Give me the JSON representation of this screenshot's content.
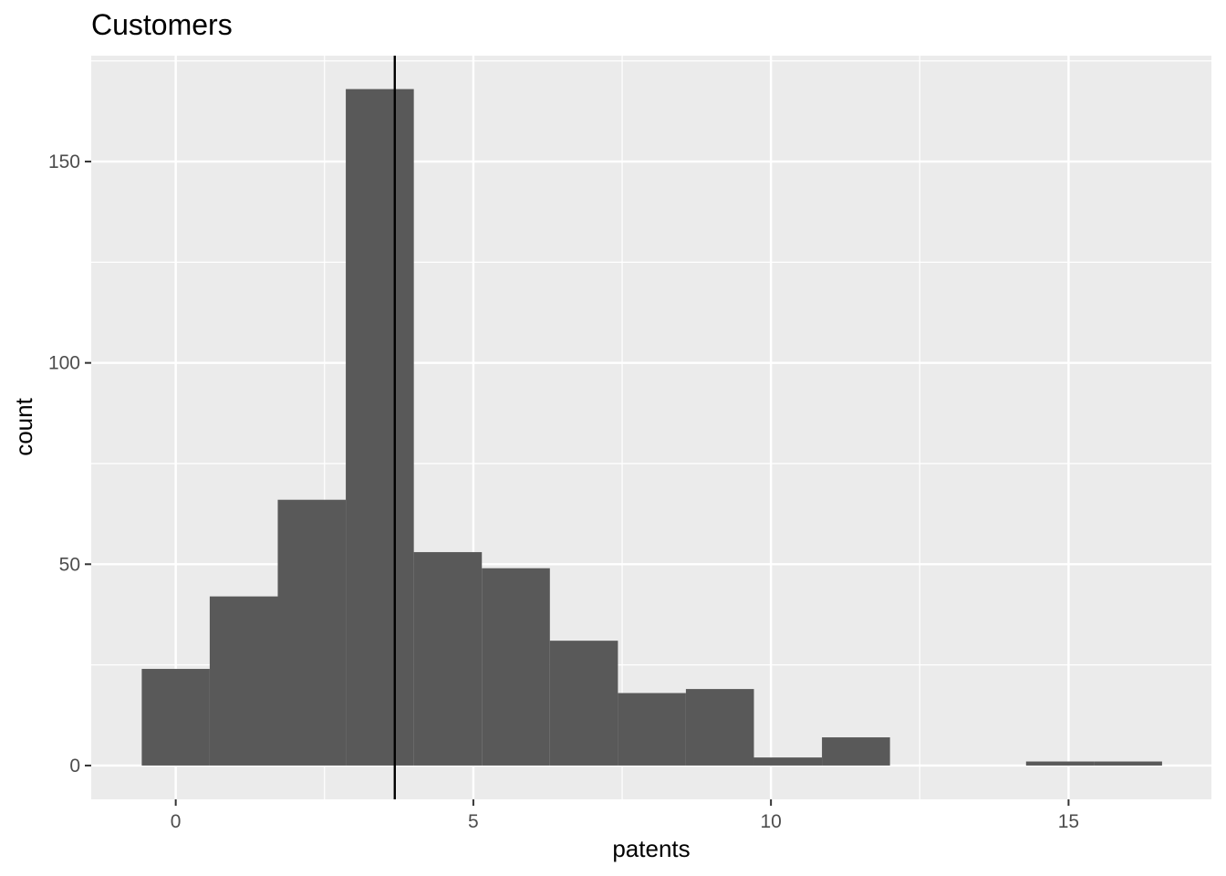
{
  "chart_data": {
    "type": "bar",
    "title": "Customers",
    "xlabel": "patents",
    "ylabel": "count",
    "xlim": [
      -1.42,
      17.4
    ],
    "ylim": [
      -8.4,
      176.3
    ],
    "x_ticks": [
      0,
      5,
      10,
      15
    ],
    "y_ticks": [
      0,
      50,
      100,
      150
    ],
    "grid": true,
    "bin_width": 1.1429,
    "bins": [
      {
        "x0": -0.571,
        "x1": 0.571,
        "count": 24
      },
      {
        "x0": 0.571,
        "x1": 1.714,
        "count": 42
      },
      {
        "x0": 1.714,
        "x1": 2.857,
        "count": 66
      },
      {
        "x0": 2.857,
        "x1": 4.0,
        "count": 168
      },
      {
        "x0": 4.0,
        "x1": 5.143,
        "count": 53
      },
      {
        "x0": 5.143,
        "x1": 6.286,
        "count": 49
      },
      {
        "x0": 6.286,
        "x1": 7.429,
        "count": 31
      },
      {
        "x0": 7.429,
        "x1": 8.571,
        "count": 18
      },
      {
        "x0": 8.571,
        "x1": 9.714,
        "count": 19
      },
      {
        "x0": 9.714,
        "x1": 10.857,
        "count": 2
      },
      {
        "x0": 10.857,
        "x1": 12.0,
        "count": 7
      },
      {
        "x0": 12.0,
        "x1": 13.143,
        "count": 0
      },
      {
        "x0": 13.143,
        "x1": 14.286,
        "count": 0
      },
      {
        "x0": 14.286,
        "x1": 15.429,
        "count": 1
      },
      {
        "x0": 15.429,
        "x1": 16.571,
        "count": 1
      }
    ],
    "vline": {
      "x": 3.68
    },
    "colors": {
      "panel": "#ebebeb",
      "grid": "#ffffff",
      "bar": "#595959",
      "vline": "#000000"
    }
  }
}
